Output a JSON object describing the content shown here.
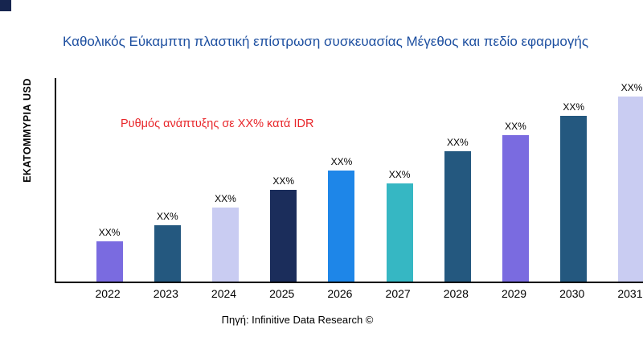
{
  "title": "Καθολικός Εύκαμπτη πλαστική επίστρωση συσκευασίας Μέγεθος και πεδίο εφαρμογής",
  "y_axis_label": "ΕΚΑΤΟΜΜΥΡΙΑ USD",
  "annotation": "Ρυθμός ανάπτυξης σε XX% κατά IDR",
  "source": "Πηγή: Infinitive Data Research ©",
  "colors": {
    "title_blue": "#1d4fa0",
    "annotation_red": "#e8262a",
    "axis_black": "#000000"
  },
  "chart_data": {
    "type": "bar",
    "title": "Καθολικός Εύκαμπτη πλαστική επίστρωση συσκευασίας Μέγεθος και πεδίο εφαρμογής",
    "xlabel": "",
    "ylabel": "ΕΚΑΤΟΜΜΥΡΙΑ USD",
    "categories": [
      "2022",
      "2023",
      "2024",
      "2025",
      "2026",
      "2027",
      "2028",
      "2029",
      "2030",
      "2031"
    ],
    "values": [
      50,
      70,
      92,
      114,
      138,
      122,
      162,
      182,
      206,
      230
    ],
    "values_note": "relative bar heights (actual values masked as XX% in source image)",
    "bar_labels": [
      "XX%",
      "XX%",
      "XX%",
      "XX%",
      "XX%",
      "XX%",
      "XX%",
      "XX%",
      "XX%",
      "XX%"
    ],
    "bar_colors": [
      "#7a6be0",
      "#24587f",
      "#c9ccf2",
      "#1b2d5b",
      "#1e86e8",
      "#36b7c3",
      "#24587f",
      "#7a6be0",
      "#24587f",
      "#c9ccf2"
    ],
    "annotation": "Ρυθμός ανάπτυξης σε XX% κατά IDR",
    "legend": "none",
    "grid": false,
    "ylim": [
      0,
      253
    ]
  }
}
